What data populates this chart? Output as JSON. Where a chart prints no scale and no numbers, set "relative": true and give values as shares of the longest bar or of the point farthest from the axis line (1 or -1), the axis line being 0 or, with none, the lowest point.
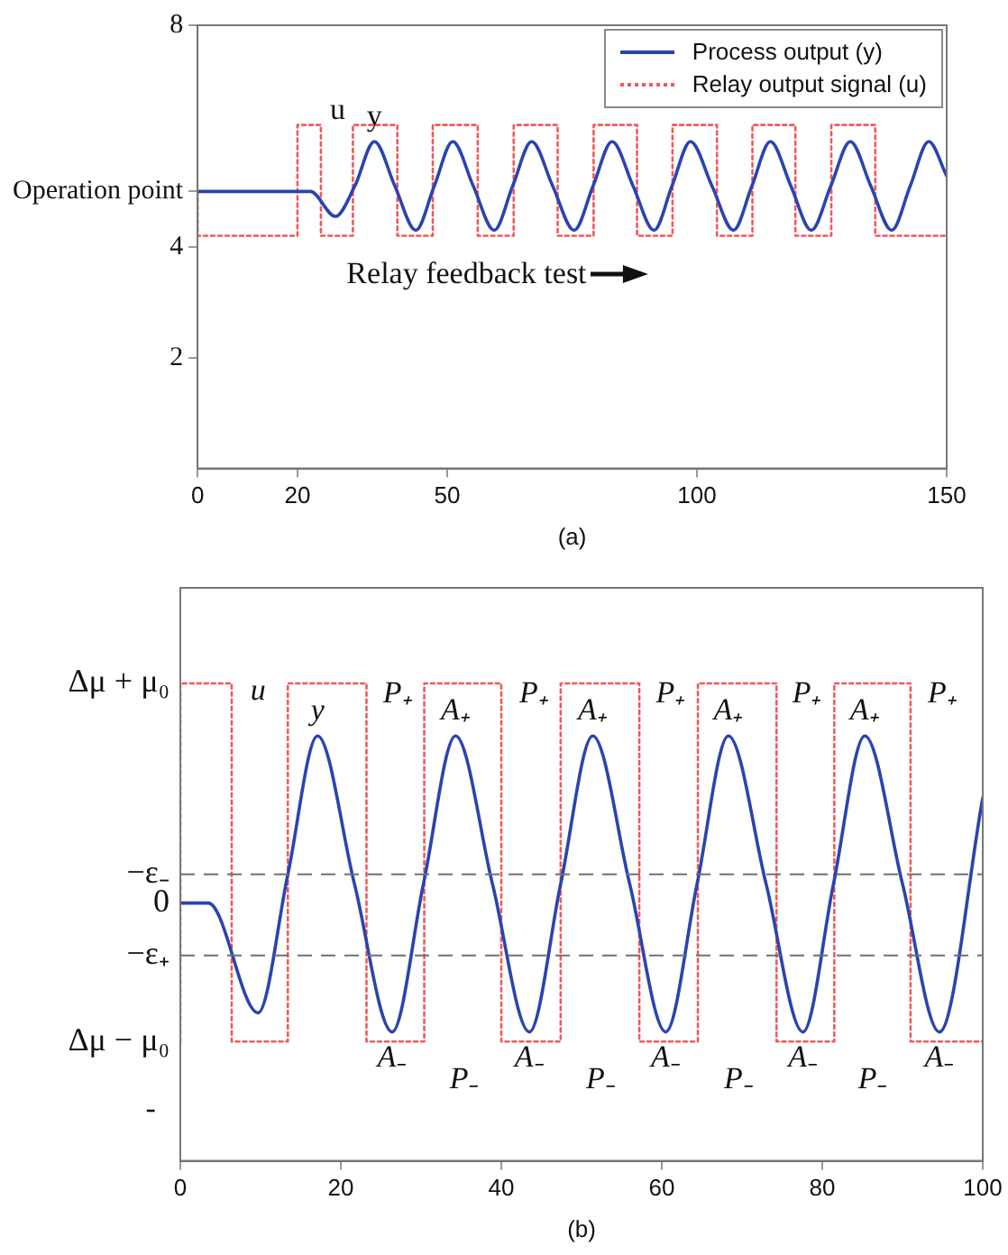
{
  "chart_data": [
    {
      "type": "line",
      "xlabel": "(a)",
      "series": [
        {
          "name": "Process output (y)",
          "type": "line",
          "color": "#2a44b0",
          "line_style": "solid",
          "x": [
            0,
            22.6,
            27.6,
            31.5,
            35.4,
            39.5,
            43.7,
            47.4,
            51.1,
            55.2,
            59.4,
            63.1,
            66.9,
            71.1,
            75.4,
            79.2,
            83,
            87.2,
            91.4,
            95,
            98.7,
            103,
            107.3,
            111,
            114.7,
            118.8,
            122.9,
            126.8,
            130.7,
            134.8,
            139,
            142.7,
            146.4,
            150
          ],
          "values": [
            5,
            5,
            4.55,
            5.1,
            5.9,
            5.1,
            4.3,
            5.1,
            5.9,
            5.1,
            4.3,
            5.1,
            5.9,
            5.1,
            4.3,
            5.1,
            5.9,
            5.1,
            4.3,
            5.1,
            5.9,
            5.1,
            4.3,
            5.1,
            5.9,
            5.1,
            4.3,
            5.1,
            5.9,
            5.1,
            4.3,
            5.1,
            5.9,
            5.28
          ]
        },
        {
          "name": "Relay output signal (u)",
          "type": "step",
          "color": "#f05a5a",
          "line_style": "dotted",
          "x": [
            0,
            20,
            24.7,
            31.1,
            40,
            47.1,
            56.1,
            63.3,
            72.1,
            79.3,
            88,
            95.1,
            104,
            111.1,
            119.7,
            126.9,
            135.7,
            142.9,
            150
          ],
          "values": [
            5,
            4.2,
            6.2,
            4.2,
            6.2,
            4.2,
            6.2,
            4.2,
            6.2,
            4.2,
            6.2,
            4.2,
            6.2,
            4.2,
            6.2,
            4.2,
            6.2,
            4.2,
            4.2
          ]
        }
      ],
      "xlim": [
        0,
        150
      ],
      "xticks": [
        0,
        20,
        50,
        100,
        150
      ],
      "ylim": [
        0,
        8
      ],
      "yticks": [
        2,
        4,
        {
          "value": 5,
          "label": "Operation point"
        },
        8
      ],
      "annotations": [
        "u",
        {
          "text": "y",
          "x": 35.4,
          "y": 5.9
        },
        "Relay feedback test"
      ],
      "legend": "top right",
      "marker": "none"
    },
    {
      "type": "line",
      "xlabel": "(b)",
      "relative": true,
      "series": [
        {
          "type": "line",
          "color": "#2a44b0",
          "line_style": "solid",
          "x": [
            0,
            3.5,
            9.7,
            13.4,
            17.1,
            21.7,
            26.4,
            30.3,
            34.3,
            38.9,
            43.5,
            47.4,
            51.4,
            56,
            60.5,
            64.4,
            68.3,
            73,
            77.6,
            81.4,
            85.3,
            90,
            94.6,
            100
          ],
          "values": [
            0.54,
            0.54,
            0.31,
            0.6,
            0.89,
            0.58,
            0.27,
            0.58,
            0.89,
            0.58,
            0.27,
            0.58,
            0.89,
            0.58,
            0.27,
            0.58,
            0.89,
            0.58,
            0.27,
            0.58,
            0.89,
            0.58,
            0.27,
            0.76
          ]
        },
        {
          "type": "step",
          "color": "#f05a5a",
          "line_style": "dotted",
          "x": [
            0,
            6.4,
            13.4,
            23.2,
            30.4,
            40,
            47.4,
            57.2,
            64.5,
            74.3,
            81.5,
            91,
            98.5,
            100
          ],
          "values": [
            0.25,
            1,
            0.25,
            1,
            0.25,
            1,
            0.25,
            1,
            0.25,
            1,
            0.25,
            1,
            0.25,
            0.25
          ]
        }
      ],
      "xlim": [
        0,
        100
      ],
      "xticks": [
        0,
        20,
        40,
        60,
        80,
        100
      ],
      "ref_lines": [
        {
          "axis": "y",
          "value": 0.6,
          "label": "−ε₋",
          "color": "#707070",
          "line_style": "dashed"
        },
        {
          "axis": "y",
          "value": 0.43,
          "label": "−ε₊",
          "color": "#707070",
          "line_style": "dashed"
        }
      ],
      "annotations": [
        {
          "text": "Δμ + μ₀",
          "x": 0,
          "y": 1
        },
        {
          "text": "0",
          "x": 0,
          "y": 0.54
        },
        {
          "text": "Δμ − μ₀",
          "x": 0,
          "y": 0.25
        },
        "-",
        "u",
        {
          "text": "y",
          "x": 17.1,
          "y": 0.89
        },
        "P₊",
        "P₊",
        "P₊",
        "P₊",
        "P₊",
        {
          "text": "A₊",
          "x": 34.3,
          "y": 0.89
        },
        {
          "text": "A₊",
          "x": 51.4,
          "y": 0.89
        },
        {
          "text": "A₊",
          "x": 68.3,
          "y": 0.89
        },
        {
          "text": "A₊",
          "x": 85.3,
          "y": 0.89
        },
        {
          "text": "A₋",
          "x": 26.4,
          "y": 0.27
        },
        {
          "text": "A₋",
          "x": 43.5,
          "y": 0.27
        },
        {
          "text": "A₋",
          "x": 60.5,
          "y": 0.27
        },
        {
          "text": "A₋",
          "x": 77.6,
          "y": 0.27
        },
        {
          "text": "A₋",
          "x": 94.6,
          "y": 0.27
        },
        "P₋",
        "P₋",
        "P₋",
        "P₋"
      ],
      "marker": "none"
    }
  ]
}
